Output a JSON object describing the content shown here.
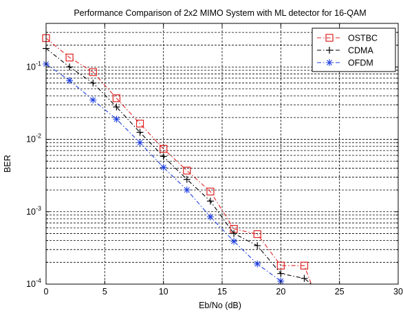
{
  "chart_data": {
    "type": "line",
    "title": "Performance Comparison of 2x2 MIMO System with ML detector for 16-QAM",
    "xlabel": "Eb/No (dB)",
    "ylabel": "BER",
    "xlim": [
      0,
      30
    ],
    "ylim": [
      0.0001,
      0.4
    ],
    "yscale": "log",
    "grid": true,
    "legend_position": "top-right",
    "x_ticks": [
      0,
      5,
      10,
      15,
      20,
      25,
      30
    ],
    "x_tick_labels": [
      "0",
      "5",
      "10",
      "15",
      "20",
      "25",
      "30"
    ],
    "y_ticks": [
      0.0001,
      0.001,
      0.01,
      0.1
    ],
    "y_tick_labels": [
      {
        "base": "10",
        "exp": "-4"
      },
      {
        "base": "10",
        "exp": "-3"
      },
      {
        "base": "10",
        "exp": "-2"
      },
      {
        "base": "10",
        "exp": "-1"
      }
    ],
    "series": [
      {
        "name": "OSTBC",
        "color": "#e02020",
        "line_style": "dash-dot",
        "marker": "square",
        "x": [
          0,
          2,
          4,
          6,
          8,
          10,
          12,
          14,
          16,
          18,
          20,
          22,
          22.6
        ],
        "y": [
          0.25,
          0.135,
          0.085,
          0.037,
          0.0165,
          0.0074,
          0.0037,
          0.0019,
          0.00058,
          0.00049,
          0.00018,
          0.00018,
          0.0001
        ]
      },
      {
        "name": "CDMA",
        "color": "#000000",
        "line_style": "dash-dot",
        "marker": "plus",
        "x": [
          0,
          2,
          4,
          6,
          8,
          10,
          12,
          14,
          16,
          18,
          20,
          22,
          22.6
        ],
        "y": [
          0.18,
          0.1,
          0.06,
          0.028,
          0.0125,
          0.0058,
          0.0028,
          0.0014,
          0.0005,
          0.00034,
          0.00014,
          0.00012,
          0.0001
        ]
      },
      {
        "name": "OFDM",
        "color": "#1f3fe0",
        "line_style": "dash-dot",
        "marker": "asterisk",
        "x": [
          0,
          2,
          4,
          6,
          8,
          10,
          12,
          14,
          16,
          18,
          20
        ],
        "y": [
          0.11,
          0.065,
          0.035,
          0.019,
          0.009,
          0.0041,
          0.002,
          0.00085,
          0.00039,
          0.00019,
          0.00011
        ]
      }
    ]
  }
}
